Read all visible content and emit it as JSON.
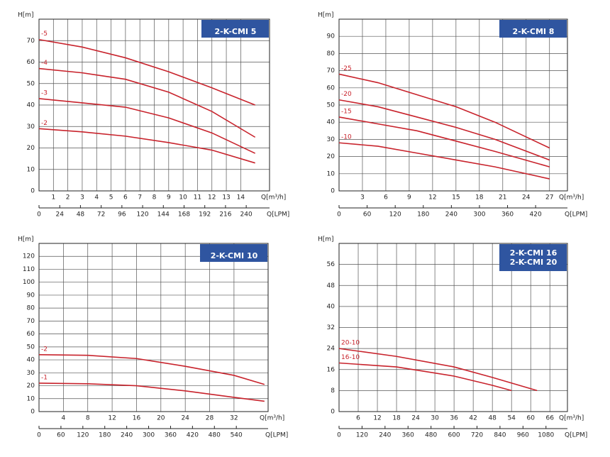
{
  "chart_data": [
    {
      "type": "line",
      "title": [
        "2-K-CMI 5"
      ],
      "ylabel": "H[m]",
      "xlabel": "Q[m³/h]",
      "x2label": "Q[LPM]",
      "ylim": [
        0,
        80
      ],
      "yticks": [
        0,
        10,
        20,
        30,
        40,
        50,
        60,
        70
      ],
      "xlim": [
        0,
        16
      ],
      "xticks": [
        1,
        2,
        3,
        4,
        5,
        6,
        7,
        8,
        9,
        10,
        11,
        12,
        13,
        14
      ],
      "x2lim": [
        0,
        267
      ],
      "x2ticks": [
        0,
        24,
        48,
        72,
        96,
        120,
        144,
        168,
        192,
        216,
        240
      ],
      "series": [
        {
          "name": "-5",
          "color": "#c8232c",
          "x": [
            0,
            3,
            6,
            9,
            12,
            15
          ],
          "values": [
            70.5,
            67,
            62,
            55.5,
            48,
            40
          ]
        },
        {
          "name": "-4",
          "color": "#c8232c",
          "x": [
            0,
            3,
            6,
            9,
            12,
            15
          ],
          "values": [
            57,
            55,
            52,
            46,
            37,
            25
          ]
        },
        {
          "name": "-3",
          "color": "#c8232c",
          "x": [
            0,
            3,
            6,
            9,
            12,
            15
          ],
          "values": [
            43,
            41,
            39,
            34,
            27,
            17.5
          ]
        },
        {
          "name": "-2",
          "color": "#c8232c",
          "x": [
            0,
            3,
            6,
            9,
            12,
            15
          ],
          "values": [
            29,
            27.5,
            25.5,
            22.5,
            19,
            13
          ]
        }
      ]
    },
    {
      "type": "line",
      "title": [
        "2-K-CMI 8"
      ],
      "ylabel": "H[m]",
      "xlabel": "Q[m³/h]",
      "x2label": "Q[LPM]",
      "ylim": [
        0,
        100
      ],
      "yticks": [
        0,
        10,
        20,
        30,
        40,
        50,
        60,
        70,
        80,
        90
      ],
      "xlim": [
        0,
        29.3
      ],
      "xticks": [
        3,
        6,
        9,
        12,
        15,
        18,
        21,
        24,
        27
      ],
      "x2lim": [
        0,
        488
      ],
      "x2ticks": [
        0,
        60,
        120,
        180,
        240,
        300,
        360,
        420
      ],
      "series": [
        {
          "name": "-25",
          "color": "#c8232c",
          "x": [
            0,
            5,
            10,
            15,
            20,
            27
          ],
          "values": [
            68,
            63,
            56,
            49,
            40,
            25
          ]
        },
        {
          "name": "-20",
          "color": "#c8232c",
          "x": [
            0,
            5,
            10,
            15,
            20,
            27
          ],
          "values": [
            53,
            49,
            43,
            37,
            30,
            18
          ]
        },
        {
          "name": "-15",
          "color": "#c8232c",
          "x": [
            0,
            5,
            10,
            15,
            20,
            27
          ],
          "values": [
            43,
            39,
            35,
            29,
            23,
            14
          ]
        },
        {
          "name": "-10",
          "color": "#c8232c",
          "x": [
            0,
            5,
            10,
            15,
            20,
            27
          ],
          "values": [
            28,
            26,
            22,
            18,
            14,
            7
          ]
        }
      ]
    },
    {
      "type": "line",
      "title": [
        "2-K-CMI 10"
      ],
      "ylabel": "H[m]",
      "xlabel": "Q[m³/h]",
      "x2label": "Q[LPM]",
      "ylim": [
        0,
        130
      ],
      "yticks": [
        0,
        10,
        20,
        30,
        40,
        50,
        60,
        70,
        80,
        90,
        100,
        110,
        120
      ],
      "xlim": [
        0,
        37.6
      ],
      "xticks": [
        4,
        8,
        12,
        16,
        20,
        24,
        28,
        32
      ],
      "x2lim": [
        0,
        627
      ],
      "x2ticks": [
        0,
        60,
        120,
        180,
        240,
        300,
        360,
        420,
        480,
        540
      ],
      "series": [
        {
          "name": "-2",
          "color": "#c8232c",
          "x": [
            0,
            8,
            16,
            24,
            32,
            37
          ],
          "values": [
            44,
            43.5,
            41,
            35,
            28,
            21
          ]
        },
        {
          "name": "-1",
          "color": "#c8232c",
          "x": [
            0,
            8,
            16,
            24,
            32,
            37
          ],
          "values": [
            22,
            21.5,
            20,
            16,
            11,
            8
          ]
        }
      ]
    },
    {
      "type": "line",
      "title": [
        "2-K-CMI 16",
        "2-K-CMI 20"
      ],
      "ylabel": "H[m]",
      "xlabel": "Q[m³/h]",
      "x2label": "Q[LPM]",
      "ylim": [
        0,
        64
      ],
      "yticks": [
        0,
        8,
        16,
        24,
        32,
        40,
        48,
        56
      ],
      "xlim": [
        0,
        71.5
      ],
      "xticks": [
        6,
        12,
        18,
        24,
        30,
        36,
        42,
        48,
        54,
        60,
        66
      ],
      "x2lim": [
        0,
        1192
      ],
      "x2ticks": [
        0,
        120,
        240,
        360,
        480,
        600,
        720,
        840,
        960,
        1080
      ],
      "series": [
        {
          "name": "20-10",
          "color": "#c8232c",
          "x": [
            0,
            18,
            36,
            48,
            62
          ],
          "values": [
            24,
            21,
            17,
            13,
            8
          ]
        },
        {
          "name": "16-10",
          "color": "#c8232c",
          "x": [
            0,
            18,
            36,
            48,
            54
          ],
          "values": [
            18.5,
            17,
            13.5,
            10,
            8
          ]
        }
      ]
    }
  ]
}
